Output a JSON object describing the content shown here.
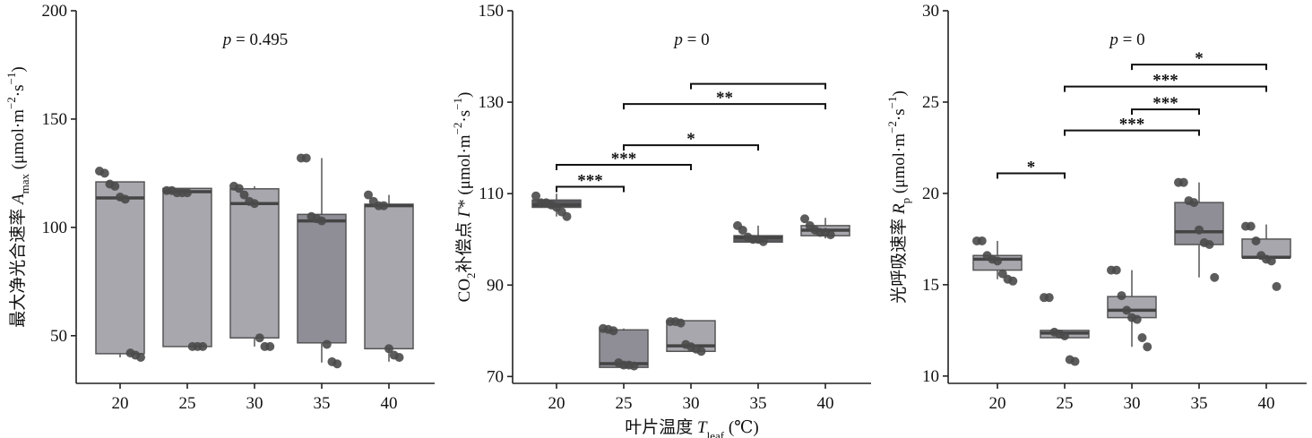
{
  "chart_data": [
    {
      "type": "box",
      "ylabel": [
        {
          "text": "最大净光合速率 "
        },
        {
          "text": "A",
          "style": "italic"
        },
        {
          "text": "max",
          "style": "sub"
        },
        {
          "text": " (μmol·m"
        },
        {
          "text": "−2",
          "style": "sup"
        },
        {
          "text": "·s"
        },
        {
          "text": "−1",
          "style": "sup"
        },
        {
          "text": ")"
        }
      ],
      "annotation": [
        {
          "text": "p",
          "style": "italic"
        },
        {
          "text": " = 0.495"
        }
      ],
      "categories": [
        "20",
        "25",
        "30",
        "35",
        "40"
      ],
      "ylim": [
        28,
        200
      ],
      "yticks": [
        50,
        100,
        150,
        200
      ],
      "point_color": "#4a4a4a",
      "boxes": [
        {
          "color": "#a9a7ae",
          "q1": 41.7,
          "median": 113.6,
          "q3": 121,
          "whislo": 40,
          "whishi": 121,
          "points": [
            126,
            125,
            120,
            119,
            114,
            113,
            42,
            41,
            40
          ]
        },
        {
          "color": "#a9a7ae",
          "q1": 45,
          "median": 116.5,
          "q3": 118,
          "whislo": 45,
          "whishi": 118,
          "points": [
            117,
            117,
            116,
            116,
            116,
            45,
            45,
            45
          ]
        },
        {
          "color": "#a9a7ae",
          "q1": 49,
          "median": 111,
          "q3": 117.8,
          "whislo": 45,
          "whishi": 119,
          "points": [
            119,
            118,
            115,
            112,
            111,
            49,
            45,
            45
          ]
        },
        {
          "color": "#8f8d95",
          "q1": 46.7,
          "median": 103,
          "q3": 106,
          "whislo": 37.6,
          "whishi": 132,
          "points": [
            132,
            132,
            105,
            104,
            103,
            46,
            38,
            37
          ]
        },
        {
          "color": "#a9a7ae",
          "q1": 44,
          "median": 110,
          "q3": 110.7,
          "whislo": 38,
          "whishi": 115,
          "points": [
            115,
            112,
            110,
            110,
            44,
            41,
            40
          ]
        }
      ],
      "brackets": []
    },
    {
      "type": "box",
      "ylabel": [
        {
          "text": "CO"
        },
        {
          "text": "2",
          "style": "sub"
        },
        {
          "text": "补偿点 "
        },
        {
          "text": "Γ",
          "style": "italic"
        },
        {
          "text": "* (μmol·m"
        },
        {
          "text": "−2",
          "style": "sup"
        },
        {
          "text": "·s"
        },
        {
          "text": "−1",
          "style": "sup"
        },
        {
          "text": ")"
        }
      ],
      "xlabel": [
        {
          "text": "叶片温度 "
        },
        {
          "text": "T",
          "style": "italic"
        },
        {
          "text": "leaf",
          "style": "sub"
        },
        {
          "text": " (℃)"
        }
      ],
      "annotation": [
        {
          "text": "p",
          "style": "italic"
        },
        {
          "text": " = 0"
        }
      ],
      "categories": [
        "20",
        "25",
        "30",
        "35",
        "40"
      ],
      "ylim": [
        68.5,
        150
      ],
      "yticks": [
        70,
        90,
        110,
        130,
        150
      ],
      "point_color": "#4a4a4a",
      "boxes": [
        {
          "color": "#5a595e",
          "q1": 107,
          "median": 107.5,
          "q3": 108.6,
          "whislo": 105,
          "whishi": 110,
          "points": [
            109.5,
            108,
            108,
            107.5,
            107,
            106,
            105
          ]
        },
        {
          "color": "#8f8d95",
          "q1": 72,
          "median": 72.8,
          "q3": 80.2,
          "whislo": 72,
          "whishi": 80.5,
          "points": [
            80.5,
            80.3,
            80,
            73,
            72.5,
            72.5,
            72.3
          ]
        },
        {
          "color": "#a9a7ae",
          "q1": 75.5,
          "median": 76.7,
          "q3": 82.2,
          "whislo": 75.5,
          "whishi": 82.2,
          "points": [
            82,
            82,
            81.7,
            77,
            76.5,
            76,
            75.5
          ]
        },
        {
          "color": "#5a595e",
          "q1": 99.4,
          "median": 100.4,
          "q3": 100.8,
          "whislo": 99.4,
          "whishi": 103,
          "points": [
            103,
            102,
            100.5,
            100,
            100,
            99.5
          ]
        },
        {
          "color": "#a9a7ae",
          "q1": 100.8,
          "median": 102,
          "q3": 103,
          "whislo": 100.2,
          "whishi": 104.7,
          "points": [
            104.5,
            103,
            102,
            101.5,
            101.5,
            101
          ]
        }
      ],
      "brackets": [
        {
          "from": 0,
          "to": 1,
          "y": 111.5,
          "label": "***"
        },
        {
          "from": 0,
          "to": 2,
          "y": 116.3,
          "label": "***"
        },
        {
          "from": 1,
          "to": 3,
          "y": 120.6,
          "label": "*"
        },
        {
          "from": 1,
          "to": 4,
          "y": 129.6,
          "label": "**"
        },
        {
          "from": 2,
          "to": 4,
          "y": 134
        }
      ]
    },
    {
      "type": "box",
      "ylabel": [
        {
          "text": "光呼吸速率 "
        },
        {
          "text": "R",
          "style": "italic"
        },
        {
          "text": "p",
          "style": "sub"
        },
        {
          "text": " (μmol·m"
        },
        {
          "text": "−2",
          "style": "sup"
        },
        {
          "text": "·s"
        },
        {
          "text": "−1",
          "style": "sup"
        },
        {
          "text": ")"
        }
      ],
      "annotation": [
        {
          "text": "p",
          "style": "italic"
        },
        {
          "text": " = 0"
        }
      ],
      "categories": [
        "20",
        "25",
        "30",
        "35",
        "40"
      ],
      "ylim": [
        9.6,
        30
      ],
      "yticks": [
        10,
        15,
        20,
        25,
        30
      ],
      "point_color": "#4a4a4a",
      "boxes": [
        {
          "color": "#a9a7ae",
          "q1": 15.8,
          "median": 16.4,
          "q3": 16.6,
          "whislo": 15.3,
          "whishi": 17.4,
          "points": [
            17.4,
            17.4,
            16.6,
            16.4,
            16.3,
            15.6,
            15.3,
            15.2
          ]
        },
        {
          "color": "#a9a7ae",
          "q1": 12.1,
          "median": 12.35,
          "q3": 12.5,
          "whislo": 12.1,
          "whishi": 12.5,
          "points": [
            14.3,
            14.3,
            12.4,
            12.3,
            12.2,
            10.9,
            10.8
          ]
        },
        {
          "color": "#a9a7ae",
          "q1": 13.2,
          "median": 13.6,
          "q3": 14.35,
          "whislo": 11.6,
          "whishi": 15.8,
          "points": [
            15.8,
            15.8,
            14.4,
            13.6,
            13.2,
            13.1,
            12.1,
            11.6
          ]
        },
        {
          "color": "#8f8d95",
          "q1": 17.2,
          "median": 17.9,
          "q3": 19.5,
          "whislo": 15.4,
          "whishi": 20.6,
          "points": [
            20.6,
            20.6,
            19.6,
            19.5,
            18,
            17.3,
            17.2,
            15.4
          ]
        },
        {
          "color": "#a9a7ae",
          "q1": 16.5,
          "median": 16.5,
          "q3": 17.5,
          "whislo": 16.3,
          "whishi": 18.3,
          "points": [
            18.2,
            18.2,
            17.4,
            16.6,
            16.4,
            16.3,
            14.9
          ]
        }
      ],
      "brackets": [
        {
          "from": 0,
          "to": 1,
          "y": 21.1,
          "label": "*"
        },
        {
          "from": 1,
          "to": 3,
          "y": 23.45,
          "label": "***"
        },
        {
          "from": 2,
          "to": 3,
          "y": 24.6,
          "label": "***"
        },
        {
          "from": 1,
          "to": 4,
          "y": 25.85,
          "label": "***"
        },
        {
          "from": 2,
          "to": 4,
          "y": 27.05,
          "label": "*"
        }
      ]
    }
  ]
}
